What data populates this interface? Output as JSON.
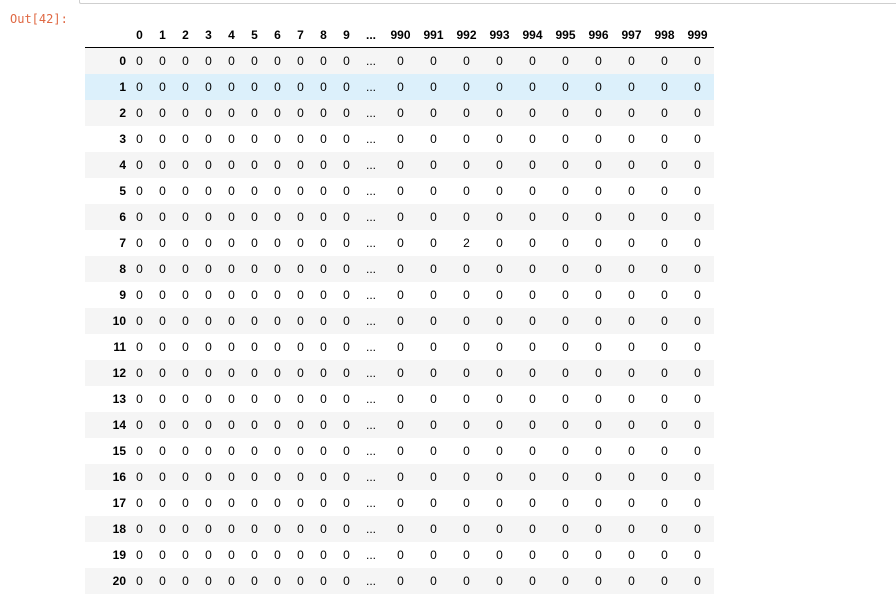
{
  "prompt": {
    "label": "Out[42]:"
  },
  "dataframe": {
    "columns": [
      "0",
      "1",
      "2",
      "3",
      "4",
      "5",
      "6",
      "7",
      "8",
      "9",
      "...",
      "990",
      "991",
      "992",
      "993",
      "994",
      "995",
      "996",
      "997",
      "998",
      "999"
    ],
    "rows": [
      {
        "index": "0",
        "values": [
          "0",
          "0",
          "0",
          "0",
          "0",
          "0",
          "0",
          "0",
          "0",
          "0",
          "...",
          "0",
          "0",
          "0",
          "0",
          "0",
          "0",
          "0",
          "0",
          "0",
          "0"
        ]
      },
      {
        "index": "1",
        "values": [
          "0",
          "0",
          "0",
          "0",
          "0",
          "0",
          "0",
          "0",
          "0",
          "0",
          "...",
          "0",
          "0",
          "0",
          "0",
          "0",
          "0",
          "0",
          "0",
          "0",
          "0"
        ]
      },
      {
        "index": "2",
        "values": [
          "0",
          "0",
          "0",
          "0",
          "0",
          "0",
          "0",
          "0",
          "0",
          "0",
          "...",
          "0",
          "0",
          "0",
          "0",
          "0",
          "0",
          "0",
          "0",
          "0",
          "0"
        ]
      },
      {
        "index": "3",
        "values": [
          "0",
          "0",
          "0",
          "0",
          "0",
          "0",
          "0",
          "0",
          "0",
          "0",
          "...",
          "0",
          "0",
          "0",
          "0",
          "0",
          "0",
          "0",
          "0",
          "0",
          "0"
        ]
      },
      {
        "index": "4",
        "values": [
          "0",
          "0",
          "0",
          "0",
          "0",
          "0",
          "0",
          "0",
          "0",
          "0",
          "...",
          "0",
          "0",
          "0",
          "0",
          "0",
          "0",
          "0",
          "0",
          "0",
          "0"
        ]
      },
      {
        "index": "5",
        "values": [
          "0",
          "0",
          "0",
          "0",
          "0",
          "0",
          "0",
          "0",
          "0",
          "0",
          "...",
          "0",
          "0",
          "0",
          "0",
          "0",
          "0",
          "0",
          "0",
          "0",
          "0"
        ]
      },
      {
        "index": "6",
        "values": [
          "0",
          "0",
          "0",
          "0",
          "0",
          "0",
          "0",
          "0",
          "0",
          "0",
          "...",
          "0",
          "0",
          "0",
          "0",
          "0",
          "0",
          "0",
          "0",
          "0",
          "0"
        ]
      },
      {
        "index": "7",
        "values": [
          "0",
          "0",
          "0",
          "0",
          "0",
          "0",
          "0",
          "0",
          "0",
          "0",
          "...",
          "0",
          "0",
          "2",
          "0",
          "0",
          "0",
          "0",
          "0",
          "0",
          "0"
        ]
      },
      {
        "index": "8",
        "values": [
          "0",
          "0",
          "0",
          "0",
          "0",
          "0",
          "0",
          "0",
          "0",
          "0",
          "...",
          "0",
          "0",
          "0",
          "0",
          "0",
          "0",
          "0",
          "0",
          "0",
          "0"
        ]
      },
      {
        "index": "9",
        "values": [
          "0",
          "0",
          "0",
          "0",
          "0",
          "0",
          "0",
          "0",
          "0",
          "0",
          "...",
          "0",
          "0",
          "0",
          "0",
          "0",
          "0",
          "0",
          "0",
          "0",
          "0"
        ]
      },
      {
        "index": "10",
        "values": [
          "0",
          "0",
          "0",
          "0",
          "0",
          "0",
          "0",
          "0",
          "0",
          "0",
          "...",
          "0",
          "0",
          "0",
          "0",
          "0",
          "0",
          "0",
          "0",
          "0",
          "0"
        ]
      },
      {
        "index": "11",
        "values": [
          "0",
          "0",
          "0",
          "0",
          "0",
          "0",
          "0",
          "0",
          "0",
          "0",
          "...",
          "0",
          "0",
          "0",
          "0",
          "0",
          "0",
          "0",
          "0",
          "0",
          "0"
        ]
      },
      {
        "index": "12",
        "values": [
          "0",
          "0",
          "0",
          "0",
          "0",
          "0",
          "0",
          "0",
          "0",
          "0",
          "...",
          "0",
          "0",
          "0",
          "0",
          "0",
          "0",
          "0",
          "0",
          "0",
          "0"
        ]
      },
      {
        "index": "13",
        "values": [
          "0",
          "0",
          "0",
          "0",
          "0",
          "0",
          "0",
          "0",
          "0",
          "0",
          "...",
          "0",
          "0",
          "0",
          "0",
          "0",
          "0",
          "0",
          "0",
          "0",
          "0"
        ]
      },
      {
        "index": "14",
        "values": [
          "0",
          "0",
          "0",
          "0",
          "0",
          "0",
          "0",
          "0",
          "0",
          "0",
          "...",
          "0",
          "0",
          "0",
          "0",
          "0",
          "0",
          "0",
          "0",
          "0",
          "0"
        ]
      },
      {
        "index": "15",
        "values": [
          "0",
          "0",
          "0",
          "0",
          "0",
          "0",
          "0",
          "0",
          "0",
          "0",
          "...",
          "0",
          "0",
          "0",
          "0",
          "0",
          "0",
          "0",
          "0",
          "0",
          "0"
        ]
      },
      {
        "index": "16",
        "values": [
          "0",
          "0",
          "0",
          "0",
          "0",
          "0",
          "0",
          "0",
          "0",
          "0",
          "...",
          "0",
          "0",
          "0",
          "0",
          "0",
          "0",
          "0",
          "0",
          "0",
          "0"
        ]
      },
      {
        "index": "17",
        "values": [
          "0",
          "0",
          "0",
          "0",
          "0",
          "0",
          "0",
          "0",
          "0",
          "0",
          "...",
          "0",
          "0",
          "0",
          "0",
          "0",
          "0",
          "0",
          "0",
          "0",
          "0"
        ]
      },
      {
        "index": "18",
        "values": [
          "0",
          "0",
          "0",
          "0",
          "0",
          "0",
          "0",
          "0",
          "0",
          "0",
          "...",
          "0",
          "0",
          "0",
          "0",
          "0",
          "0",
          "0",
          "0",
          "0",
          "0"
        ]
      },
      {
        "index": "19",
        "values": [
          "0",
          "0",
          "0",
          "0",
          "0",
          "0",
          "0",
          "0",
          "0",
          "0",
          "...",
          "0",
          "0",
          "0",
          "0",
          "0",
          "0",
          "0",
          "0",
          "0",
          "0"
        ]
      },
      {
        "index": "20",
        "values": [
          "0",
          "0",
          "0",
          "0",
          "0",
          "0",
          "0",
          "0",
          "0",
          "0",
          "...",
          "0",
          "0",
          "0",
          "0",
          "0",
          "0",
          "0",
          "0",
          "0",
          "0"
        ]
      }
    ],
    "hovered_row": 1
  },
  "colors": {
    "prompt": "#d84315",
    "row_stripe": "#f5f5f5",
    "row_hover": "#dcf0fb",
    "header_rule": "#000000"
  }
}
